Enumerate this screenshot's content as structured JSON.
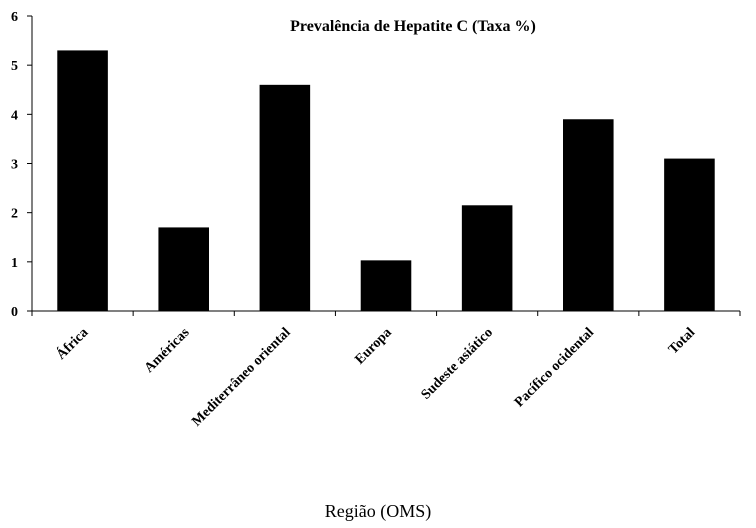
{
  "chart_data": {
    "type": "bar",
    "title": "Prevalência de Hepatite C (Taxa %)",
    "x_label": "Região (OMS)",
    "categories": [
      "África",
      "Américas",
      "Mediterrâneo oriental",
      "Europa",
      "Sudeste asiático",
      "Pacífico ocidental",
      "Total"
    ],
    "values": [
      5.3,
      1.7,
      4.6,
      1.03,
      2.15,
      3.9,
      3.1
    ],
    "color": "#000000",
    "ylim": [
      0,
      6
    ],
    "yticks": [
      0,
      1,
      2,
      3,
      4,
      5,
      6
    ],
    "grid": false
  }
}
